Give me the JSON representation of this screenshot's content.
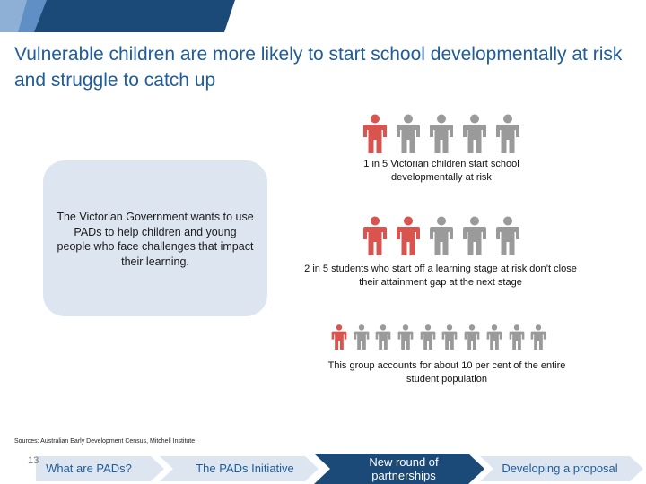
{
  "slide": {
    "title": "Vulnerable children are more likely to start school developmentally at risk and struggle to catch up",
    "callout_text": "The Victorian Government wants to use PADs to help children and young people who face challenges that impact their learning.",
    "stats": [
      {
        "text": "1 in 5 Victorian children start school developmentally at risk",
        "highlighted": 1,
        "total": 5
      },
      {
        "text": "2 in 5 students who start off a learning stage at risk don’t close their attainment gap at the next stage",
        "highlighted": 2,
        "total": 5
      },
      {
        "text": "This group accounts for about 10 per cent of the entire student population",
        "highlighted": 1,
        "total": 10
      }
    ],
    "sources": "Sources: Australian Early Development Census, Mitchell Institute",
    "page_number": "13"
  },
  "nav": {
    "steps": [
      {
        "label": "What are PADs?",
        "active": false
      },
      {
        "label": "The PADs Initiative",
        "active": false
      },
      {
        "label": "New round of partnerships",
        "active": true
      },
      {
        "label": "Developing a proposal",
        "active": false
      }
    ]
  },
  "colors": {
    "title": "#1f5c99",
    "highlight_person": "#d9534f",
    "person": "#9a9a9a",
    "callout_bg": "#dde6f0",
    "nav_inactive": "#dde6f0",
    "nav_active": "#1c4a78",
    "nav_inactive_text": "#1f5c99",
    "nav_active_text": "#ffffff"
  },
  "icons": {
    "person": "person-icon"
  }
}
